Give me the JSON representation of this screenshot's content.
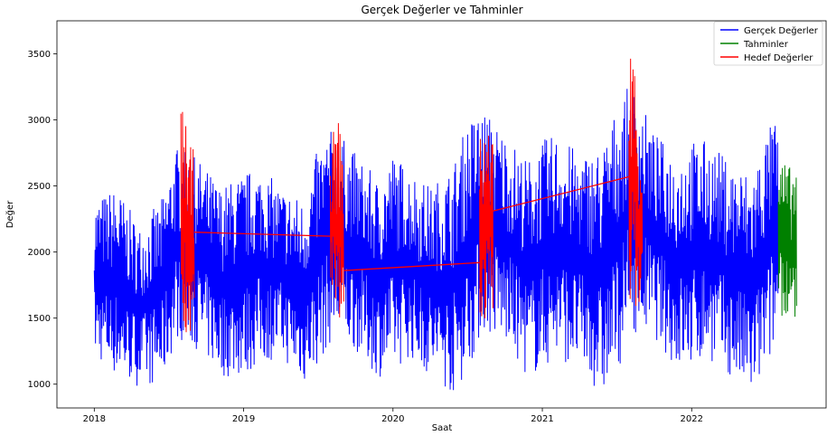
{
  "chart_data": {
    "type": "line",
    "title": "Gerçek Değerler ve Tahminler",
    "xlabel": "Saat",
    "ylabel": "Değer",
    "xlim": [
      2017.75,
      2022.9
    ],
    "ylim": [
      820,
      3750
    ],
    "x_ticks": [
      2018,
      2019,
      2020,
      2021,
      2022
    ],
    "x_tick_labels": [
      "2018",
      "2019",
      "2020",
      "2021",
      "2022"
    ],
    "y_ticks": [
      1000,
      1500,
      2000,
      2500,
      3000,
      3500
    ],
    "y_tick_labels": [
      "1000",
      "1500",
      "2000",
      "2500",
      "3000",
      "3500"
    ],
    "grid": false,
    "legend_position": "top-right",
    "series": [
      {
        "name": "Gerçek Değerler",
        "color": "#0000ff",
        "x_range": [
          2018.0,
          2022.58
        ],
        "envelope": {
          "x": [
            2018.0,
            2018.15,
            2018.3,
            2018.45,
            2018.55,
            2018.7,
            2018.85,
            2019.0,
            2019.1,
            2019.25,
            2019.4,
            2019.5,
            2019.6,
            2019.75,
            2019.9,
            2020.0,
            2020.1,
            2020.25,
            2020.4,
            2020.5,
            2020.6,
            2020.75,
            2020.9,
            2021.0,
            2021.1,
            2021.25,
            2021.4,
            2021.5,
            2021.6,
            2021.75,
            2021.9,
            2022.0,
            2022.1,
            2022.25,
            2022.4,
            2022.5,
            2022.58
          ],
          "high": [
            2400,
            2500,
            2200,
            2400,
            2800,
            2700,
            2500,
            2600,
            2650,
            2500,
            2400,
            2800,
            2950,
            2750,
            2550,
            2750,
            2650,
            2500,
            2650,
            3000,
            3100,
            2900,
            2700,
            2850,
            2900,
            2750,
            2800,
            3100,
            3300,
            2900,
            2750,
            2850,
            2850,
            2700,
            2600,
            2900,
            3080
          ],
          "low": [
            1200,
            1050,
            980,
            1000,
            1350,
            1250,
            1050,
            1050,
            1150,
            1200,
            1000,
            1150,
            1350,
            1250,
            1050,
            1100,
            1200,
            1050,
            920,
            1100,
            1400,
            1300,
            1050,
            1100,
            1200,
            1100,
            900,
            1100,
            1400,
            1350,
            1100,
            1100,
            1200,
            1050,
            880,
            1100,
            1350
          ]
        }
      },
      {
        "name": "Tahminler",
        "color": "#008000",
        "x_range": [
          2022.58,
          2022.7
        ],
        "envelope": {
          "x": [
            2022.58,
            2022.62,
            2022.66,
            2022.7
          ],
          "high": [
            2780,
            2700,
            2650,
            2680
          ],
          "low": [
            1550,
            1450,
            1350,
            1550
          ]
        }
      },
      {
        "name": "Hedef Değerler",
        "color": "#ff0000",
        "segments": [
          {
            "x_range": [
              2018.58,
              2018.67
            ],
            "high": [
              3100,
              3080,
              2800,
              2780
            ],
            "low": [
              1450,
              1400,
              1300,
              1220
            ]
          },
          {
            "x_range": [
              2019.58,
              2019.67
            ],
            "high": [
              2970,
              2900,
              3040,
              2850
            ],
            "low": [
              1500,
              1450,
              1400,
              1320
            ]
          },
          {
            "x_range": [
              2020.58,
              2020.67
            ],
            "high": [
              2850,
              3010,
              2950,
              2900
            ],
            "low": [
              1450,
              1440,
              1500,
              1540
            ]
          },
          {
            "x_range": [
              2021.58,
              2021.67
            ],
            "high": [
              3640,
              3600,
              3000,
              2920
            ],
            "low": [
              1650,
              1600,
              1520,
              1480
            ]
          }
        ],
        "connecting_line": {
          "x": [
            2018.67,
            2019.58,
            2019.67,
            2020.58,
            2020.67,
            2021.58
          ],
          "y": [
            2150,
            2120,
            1860,
            1920,
            2310,
            2570
          ]
        }
      }
    ]
  }
}
